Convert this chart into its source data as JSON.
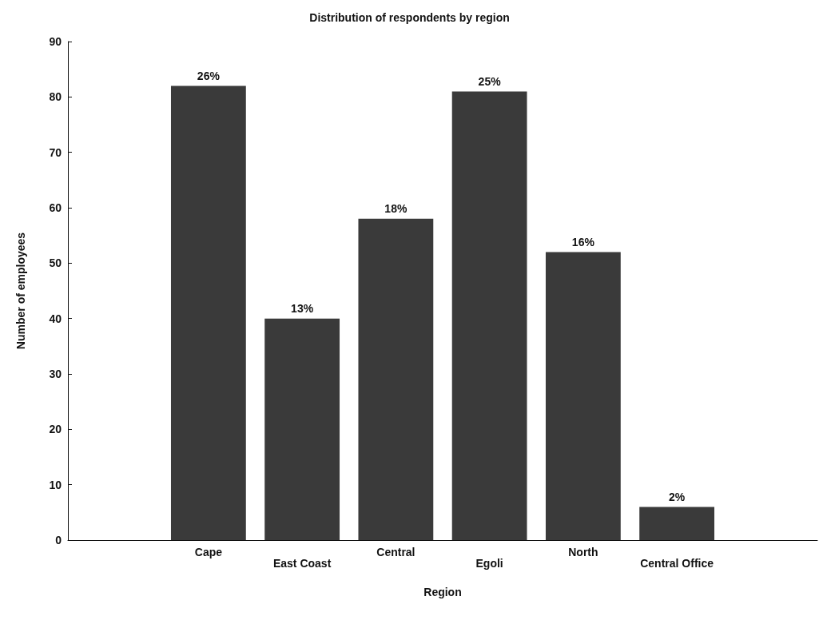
{
  "chart_data": {
    "type": "bar",
    "title": "Distribution of respondents by region",
    "xlabel": "Region",
    "ylabel": "Number of employees",
    "categories": [
      null,
      "Cape",
      "East Coast",
      "Central",
      "Egoli",
      "North",
      "Central Office",
      null
    ],
    "values": [
      null,
      82,
      40,
      58,
      81,
      52,
      6,
      null
    ],
    "annotations": [
      {
        "text": "26%",
        "x": "Cape",
        "y": 82
      },
      {
        "text": "13%",
        "x": "East Coast",
        "y": 40
      },
      {
        "text": "18%",
        "x": "Central",
        "y": 58
      },
      {
        "text": "25%",
        "x": "Egoli",
        "y": 81
      },
      {
        "text": "16%",
        "x": "North",
        "y": 52
      },
      {
        "text": "2%",
        "x": "Central Office",
        "y": 6
      }
    ],
    "color": "#3a3a3a",
    "ylim": [
      0,
      90
    ],
    "yticks": [
      0,
      10,
      20,
      30,
      40,
      50,
      60,
      70,
      80,
      90
    ],
    "grid": false
  }
}
